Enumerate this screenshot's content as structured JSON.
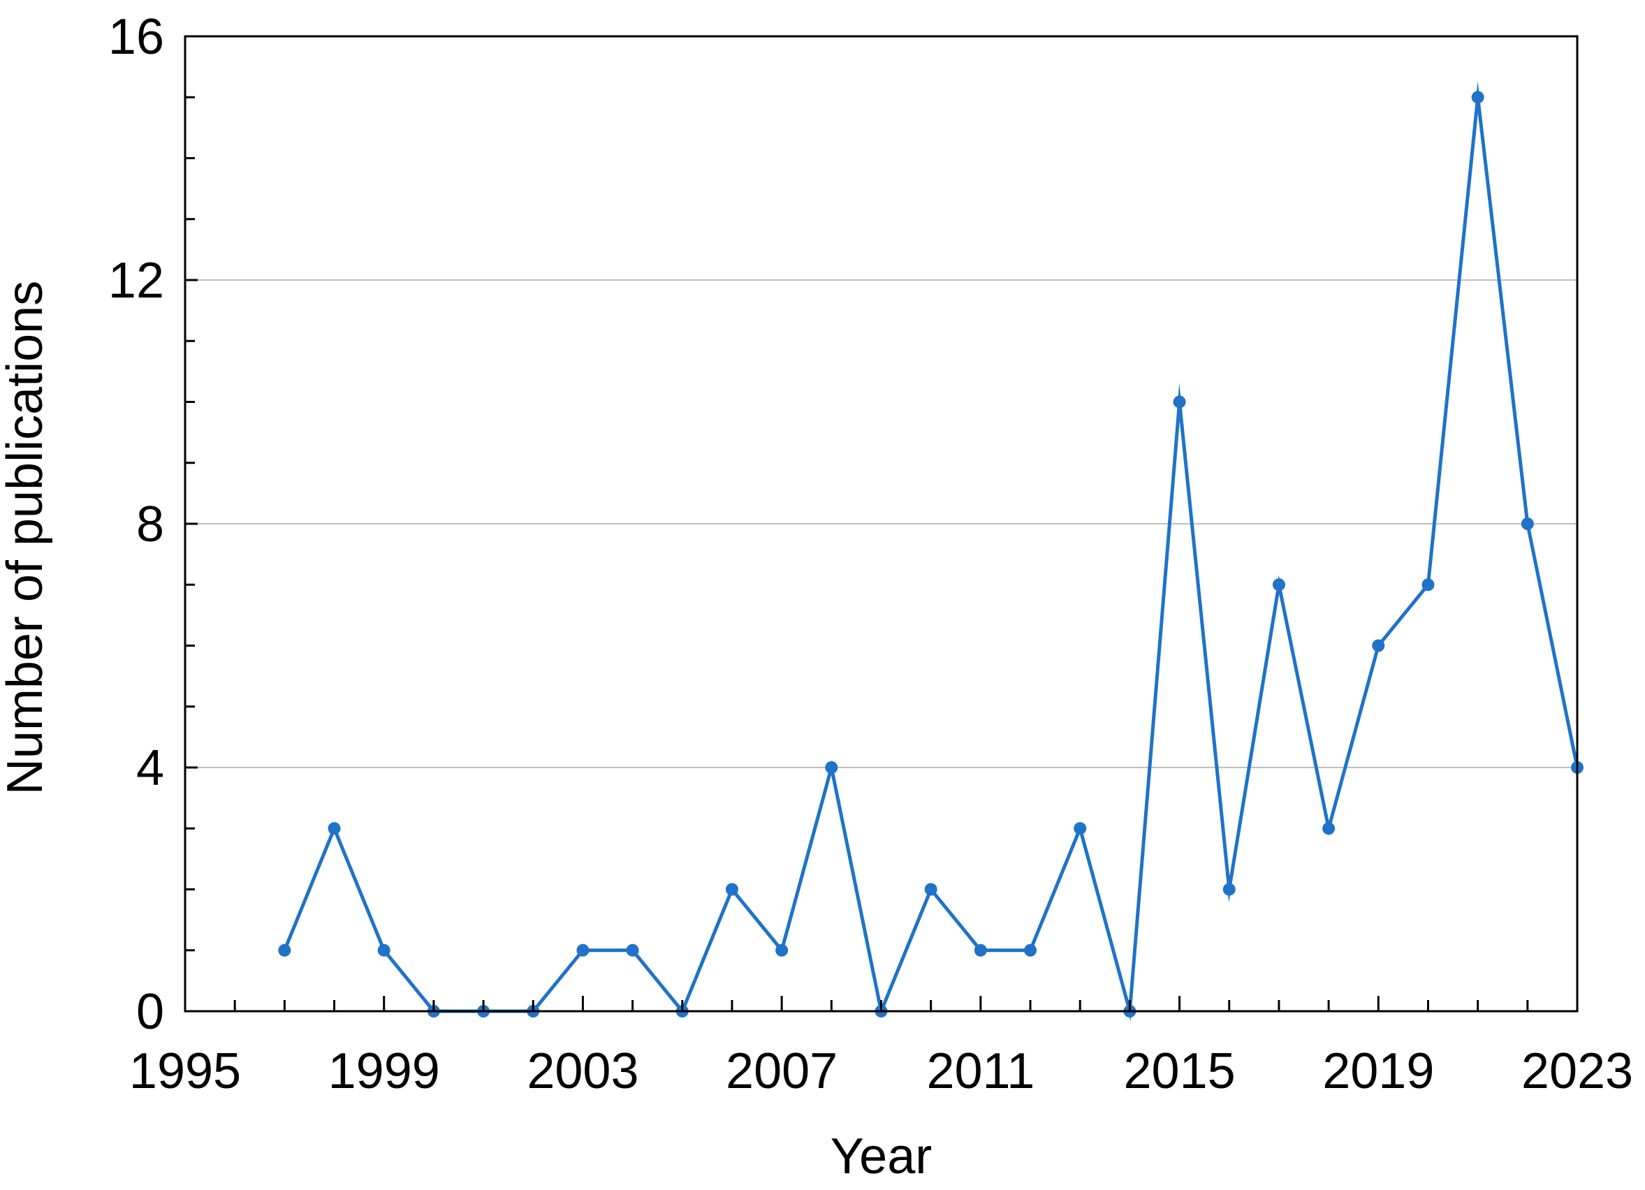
{
  "chart_data": {
    "type": "line",
    "title": "",
    "xlabel": "Year",
    "ylabel": "Number of publications",
    "xlim": [
      1995,
      2023
    ],
    "ylim": [
      0,
      16
    ],
    "x_ticks": [
      "1995",
      "1999",
      "2003",
      "2007",
      "2011",
      "2015",
      "2019",
      "2023"
    ],
    "y_ticks": [
      "0",
      "4",
      "8",
      "12",
      "16"
    ],
    "grid": "horizontal major gridlines",
    "legend": "none",
    "series": [
      {
        "color": "#1f73c8",
        "marker": "circle",
        "x": [
          1997,
          1998,
          1999,
          2000,
          2001,
          2002,
          2003,
          2004,
          2005,
          2006,
          2007,
          2008,
          2009,
          2010,
          2011,
          2012,
          2013,
          2014,
          2015,
          2016,
          2017,
          2018,
          2019,
          2020,
          2021,
          2022,
          2023
        ],
        "y": [
          1,
          3,
          1,
          0,
          0,
          0,
          1,
          1,
          0,
          2,
          1,
          4,
          0,
          2,
          1,
          1,
          3,
          0,
          10,
          2,
          7,
          3,
          6,
          7,
          15,
          8,
          4
        ]
      }
    ]
  },
  "colors": {
    "series": "#1f73c8",
    "grid": "#bfbfbf",
    "axis": "#000000"
  }
}
